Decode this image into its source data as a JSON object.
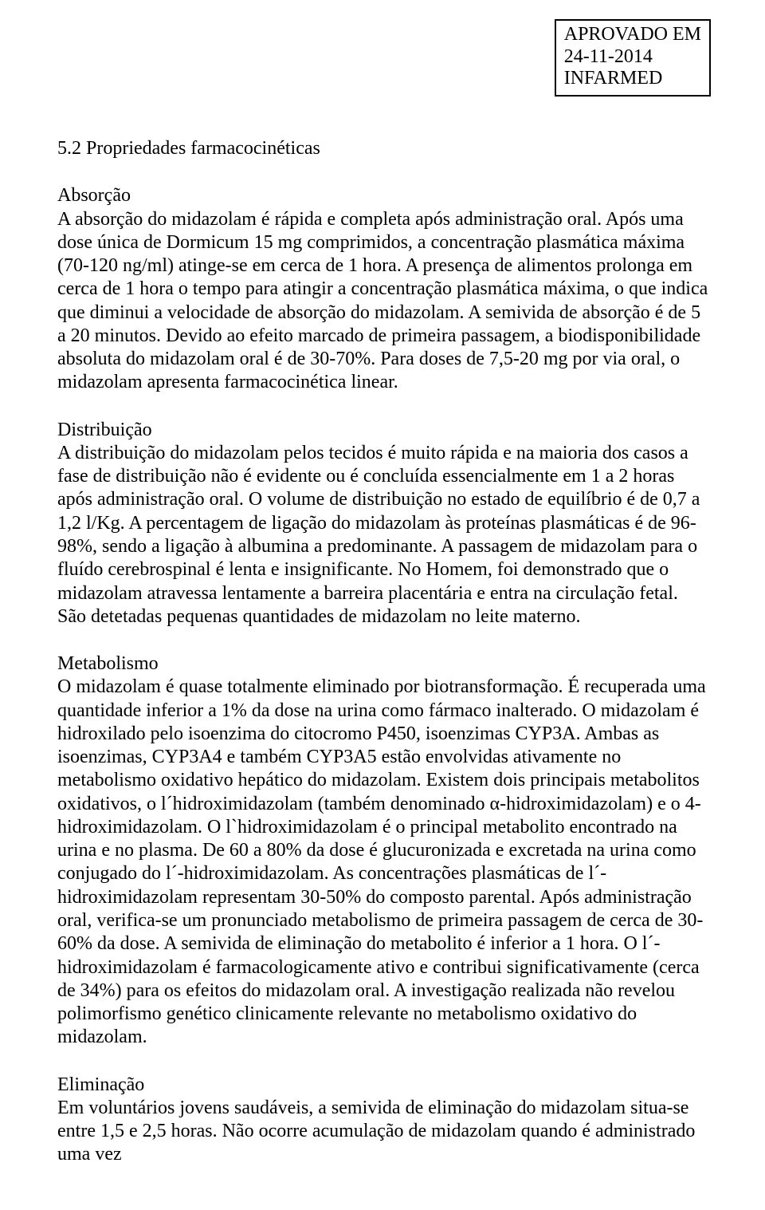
{
  "stamp": {
    "line1": "APROVADO EM",
    "line2": "24-11-2014",
    "line3": "INFARMED"
  },
  "heading": "5.2 Propriedades farmacocinéticas",
  "absorcao": {
    "title": "Absorção",
    "body": "A absorção do midazolam é rápida e completa após administração oral. Após uma dose única de Dormicum 15 mg comprimidos, a concentração plasmática máxima (70-120 ng/ml) atinge-se em cerca de 1 hora. A presença de alimentos prolonga em cerca de 1 hora o tempo para atingir a concentração plasmática máxima, o que indica que diminui a velocidade de absorção do midazolam. A semivida de absorção é de 5 a 20 minutos. Devido ao efeito marcado de primeira passagem, a biodisponibilidade absoluta do midazolam oral é de 30-70%. Para doses de 7,5-20 mg por via oral, o midazolam apresenta farmacocinética linear."
  },
  "distribuicao": {
    "title": "Distribuição",
    "body": "A distribuição do midazolam pelos tecidos é muito rápida e na maioria dos casos a fase de distribuição não é evidente ou é concluída essencialmente em 1 a 2 horas após administração oral. O volume de distribuição no estado de equilíbrio é de 0,7 a 1,2 l/Kg. A percentagem de ligação do midazolam às proteínas plasmáticas é de 96-98%, sendo a ligação à albumina a predominante. A passagem de midazolam para o fluído cerebrospinal é lenta e insignificante. No Homem, foi demonstrado que o midazolam atravessa lentamente a barreira placentária e entra na circulação fetal. São detetadas pequenas quantidades de midazolam no leite materno."
  },
  "metabolismo": {
    "title": "Metabolismo",
    "body": "O midazolam é quase totalmente eliminado por biotransformação. É recuperada uma quantidade inferior a 1% da dose na urina como fármaco inalterado. O midazolam é hidroxilado pelo isoenzima do citocromo P450, isoenzimas CYP3A. Ambas as isoenzimas, CYP3A4 e também CYP3A5 estão envolvidas ativamente no metabolismo oxidativo hepático do midazolam. Existem dois principais metabolitos oxidativos, o l´hidroximidazolam (também denominado α-hidroximidazolam) e o 4-hidroximidazolam. O l`hidroximidazolam é o principal metabolito encontrado na urina e no plasma. De 60 a 80% da dose é glucuronizada e excretada na urina como conjugado do l´-hidroximidazolam. As concentrações plasmáticas de l´-hidroximidazolam representam 30-50% do composto parental. Após administração oral, verifica-se um pronunciado metabolismo de primeira passagem de cerca de 30-60% da dose. A semivida de eliminação do metabolito é inferior a 1 hora. O l´-hidroximidazolam é farmacologicamente ativo e contribui significativamente (cerca de 34%) para os efeitos do midazolam oral. A investigação realizada não revelou polimorfismo genético clinicamente relevante no metabolismo oxidativo do midazolam."
  },
  "eliminacao": {
    "title": "Eliminação",
    "body": "Em voluntários jovens saudáveis, a semivida de eliminação do midazolam situa-se entre 1,5 e 2,5 horas. Não ocorre acumulação de midazolam quando é administrado uma vez"
  }
}
